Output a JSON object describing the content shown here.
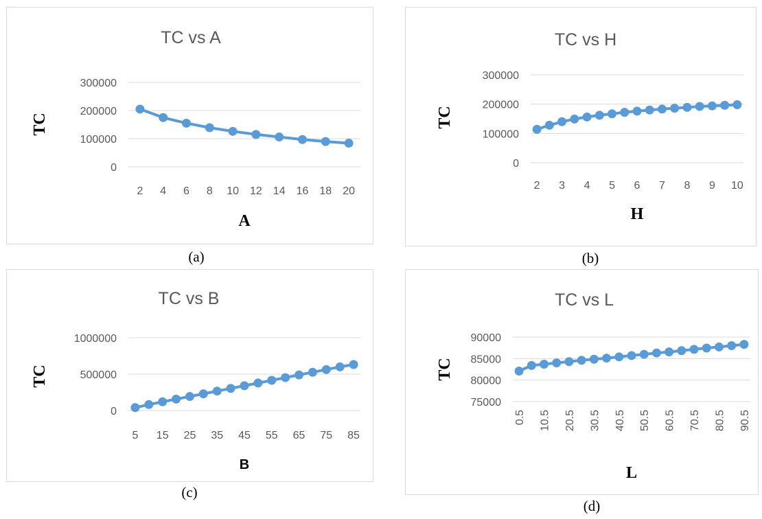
{
  "colors": {
    "series": "#5b9bd5",
    "grid": "#d9d9d9",
    "text": "#595959",
    "border": "#d9d9d9"
  },
  "captions": [
    "(a)",
    "(b)",
    "(c)",
    "(d)"
  ],
  "chart_data": [
    {
      "type": "line",
      "title": "TC vs A",
      "xlabel": "A",
      "ylabel": "TC",
      "x": [
        2,
        4,
        6,
        8,
        10,
        12,
        14,
        16,
        18,
        20
      ],
      "x_tick_labels": [
        "2",
        "4",
        "6",
        "8",
        "10",
        "12",
        "14",
        "16",
        "18",
        "20"
      ],
      "y_ticks": [
        0,
        100000,
        200000,
        300000
      ],
      "ylim": [
        0,
        300000
      ],
      "grid": true,
      "series": [
        {
          "values": [
            205000,
            175000,
            155000,
            139000,
            126000,
            115000,
            106000,
            97000,
            90000,
            84000
          ]
        }
      ]
    },
    {
      "type": "line",
      "title": "TC vs H",
      "xlabel": "H",
      "ylabel": "TC",
      "x": [
        2,
        2.5,
        3,
        3.5,
        4,
        4.5,
        5,
        5.5,
        6,
        6.5,
        7,
        7.5,
        8,
        8.5,
        9,
        9.5,
        10
      ],
      "x_tick_labels": [
        "2",
        "3",
        "4",
        "5",
        "6",
        "7",
        "8",
        "9",
        "10"
      ],
      "y_ticks": [
        0,
        100000,
        200000,
        300000
      ],
      "ylim": [
        0,
        300000
      ],
      "grid": true,
      "series": [
        {
          "values": [
            114000,
            128000,
            140000,
            149000,
            156000,
            162000,
            167000,
            172000,
            176000,
            180000,
            183000,
            186000,
            189000,
            192000,
            194000,
            196000,
            198000
          ]
        }
      ]
    },
    {
      "type": "line",
      "title": "TC vs B",
      "xlabel": "B",
      "ylabel": "TC",
      "x": [
        5,
        10,
        15,
        20,
        25,
        30,
        35,
        40,
        45,
        50,
        55,
        60,
        65,
        70,
        75,
        80,
        85
      ],
      "x_tick_labels": [
        "5",
        "15",
        "25",
        "35",
        "45",
        "55",
        "65",
        "75",
        "85"
      ],
      "y_ticks": [
        0,
        500000,
        1000000
      ],
      "ylim": [
        0,
        1000000
      ],
      "grid": true,
      "series": [
        {
          "values": [
            40000,
            82000,
            120000,
            157000,
            193000,
            230000,
            267000,
            304000,
            341000,
            378000,
            415000,
            452000,
            489000,
            526000,
            563000,
            600000,
            632000
          ]
        }
      ]
    },
    {
      "type": "line",
      "title": "TC vs L",
      "xlabel": "L",
      "ylabel": "TC",
      "x": [
        0.5,
        5.5,
        10.5,
        15.5,
        20.5,
        25.5,
        30.5,
        35.5,
        40.5,
        45.5,
        50.5,
        55.5,
        60.5,
        65.5,
        70.5,
        75.5,
        80.5,
        85.5,
        90.5
      ],
      "x_tick_labels": [
        "0.5",
        "10.5",
        "20.5",
        "30.5",
        "40.5",
        "50.5",
        "60.5",
        "70.5",
        "80.5",
        "90.5"
      ],
      "y_ticks": [
        75000,
        80000,
        85000,
        90000
      ],
      "ylim": [
        75000,
        90000
      ],
      "grid": true,
      "series": [
        {
          "values": [
            82100,
            83400,
            83700,
            84000,
            84300,
            84600,
            84850,
            85100,
            85400,
            85700,
            86000,
            86300,
            86550,
            86850,
            87150,
            87450,
            87700,
            88000,
            88300
          ]
        }
      ]
    }
  ]
}
